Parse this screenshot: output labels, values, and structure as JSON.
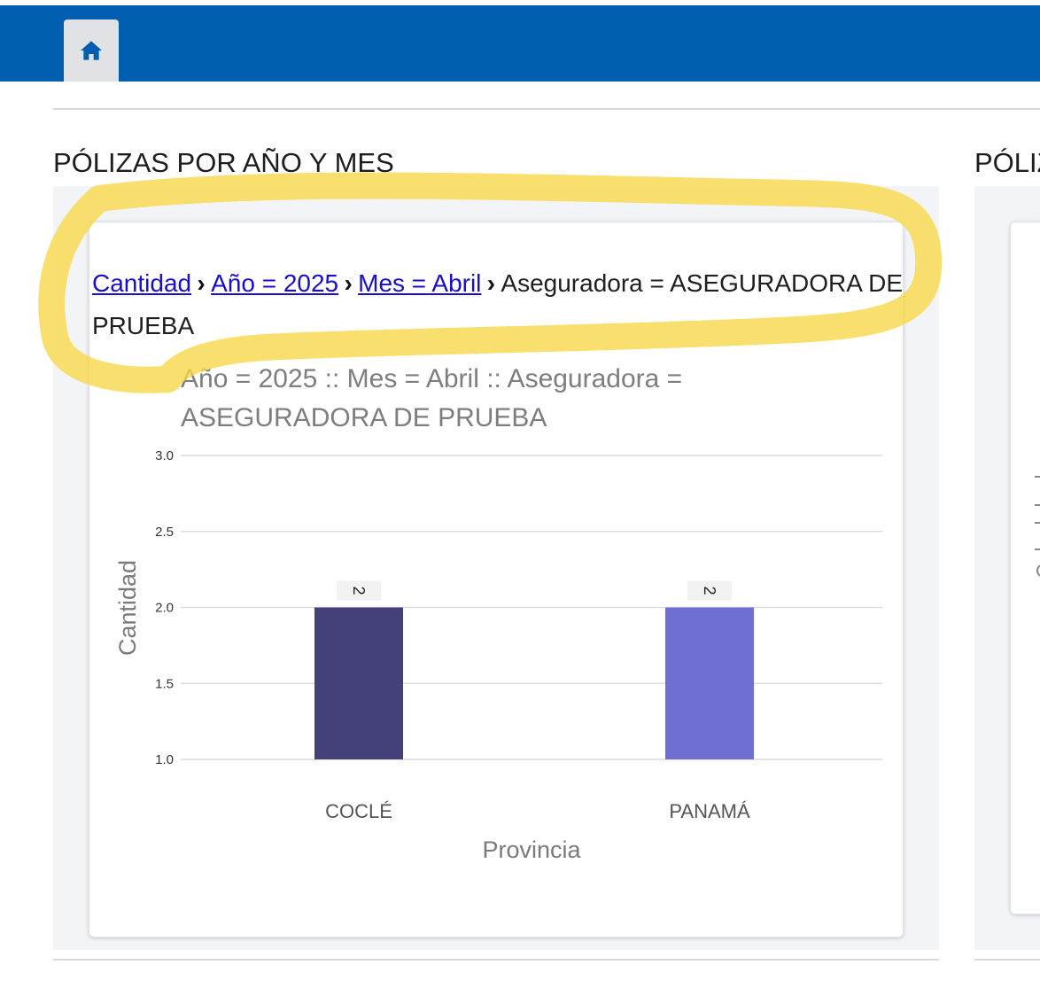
{
  "header": {
    "home_icon": "home-icon"
  },
  "panels": [
    {
      "title": "PÓLIZAS POR AÑO Y MES"
    },
    {
      "title": "PÓLIZ"
    }
  ],
  "breadcrumb": {
    "items": [
      {
        "label": "Cantidad",
        "link": true
      },
      {
        "label": "Año = 2025",
        "link": true
      },
      {
        "label": "Mes = Abril",
        "link": true
      },
      {
        "label": "Aseguradora = ASEGURADORA DE PRUEBA",
        "link": false
      }
    ],
    "separator": "›"
  },
  "highlight_color": "#f8d84a",
  "chart_data": {
    "type": "bar",
    "title": "Año = 2025 :: Mes = Abril :: Aseguradora = ASEGURADORA DE PRUEBA",
    "categories": [
      "COCLÉ",
      "PANAMÁ"
    ],
    "values": [
      2,
      2
    ],
    "colors": [
      "#434177",
      "#6f6fd2"
    ],
    "data_labels": [
      "2",
      "2"
    ],
    "xlabel": "Provincia",
    "ylabel": "Cantidad",
    "ylim": [
      1.0,
      3.0
    ],
    "yticks": [
      "1.0",
      "1.5",
      "2.0",
      "2.5",
      "3.0"
    ],
    "grid": true
  }
}
